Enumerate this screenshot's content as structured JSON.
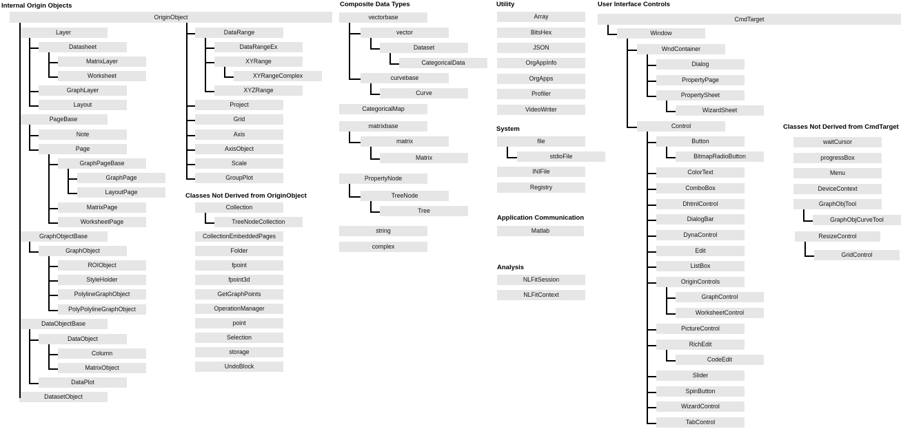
{
  "sections": [
    {
      "id": "internal-origin-objects",
      "title": "Internal Origin Objects",
      "items": [
        {
          "label": "OriginObject",
          "depth": 0
        },
        {
          "label": "Layer",
          "depth": 1
        },
        {
          "label": "Datasheet",
          "depth": 2
        },
        {
          "label": "MatrixLayer",
          "depth": 3
        },
        {
          "label": "Worksheet",
          "depth": 3
        },
        {
          "label": "GraphLayer",
          "depth": 2
        },
        {
          "label": "Layout",
          "depth": 2
        },
        {
          "label": "PageBase",
          "depth": 1
        },
        {
          "label": "Note",
          "depth": 2
        },
        {
          "label": "Page",
          "depth": 2
        },
        {
          "label": "GraphPageBase",
          "depth": 3
        },
        {
          "label": "GraphPage",
          "depth": 4
        },
        {
          "label": "LayoutPage",
          "depth": 4
        },
        {
          "label": "MatrixPage",
          "depth": 3
        },
        {
          "label": "WorksheetPage",
          "depth": 3
        },
        {
          "label": "GraphObjectBase",
          "depth": 1
        },
        {
          "label": "GraphObject",
          "depth": 2
        },
        {
          "label": "ROIObject",
          "depth": 3
        },
        {
          "label": "StyleHolder",
          "depth": 3
        },
        {
          "label": "PolylineGraphObject",
          "depth": 3
        },
        {
          "label": "PolyPolylineGraphObject",
          "depth": 3
        },
        {
          "label": "DataObjectBase",
          "depth": 1
        },
        {
          "label": "DataObject",
          "depth": 2
        },
        {
          "label": "Column",
          "depth": 3
        },
        {
          "label": "MatrixObject",
          "depth": 3
        },
        {
          "label": "DataPlot",
          "depth": 2
        },
        {
          "label": "DatasetObject",
          "depth": 1
        }
      ]
    },
    {
      "id": "origin-object-children",
      "title": "",
      "items": [
        {
          "label": "DataRange",
          "depth": 1
        },
        {
          "label": "DataRangeEx",
          "depth": 2
        },
        {
          "label": "XYRange",
          "depth": 2
        },
        {
          "label": "XYRangeComplex",
          "depth": 3
        },
        {
          "label": "XYZRange",
          "depth": 2
        },
        {
          "label": "Project",
          "depth": 1
        },
        {
          "label": "Grid",
          "depth": 1
        },
        {
          "label": "Axis",
          "depth": 1
        },
        {
          "label": "AxisObject",
          "depth": 1
        },
        {
          "label": "Scale",
          "depth": 1
        },
        {
          "label": "GroupPlot",
          "depth": 1
        }
      ]
    },
    {
      "id": "not-derived-origin-object",
      "title": "Classes Not Derived from OriginObject",
      "items": [
        {
          "label": "Collection",
          "depth": 0
        },
        {
          "label": "TreeNodeCollection",
          "depth": 1
        },
        {
          "label": "CollectionEmbeddedPages",
          "depth": 0
        },
        {
          "label": "Folder",
          "depth": 0
        },
        {
          "label": "fpoint",
          "depth": 0
        },
        {
          "label": "fpoint3d",
          "depth": 0
        },
        {
          "label": "GetGraphPoints",
          "depth": 0
        },
        {
          "label": "OperationManager",
          "depth": 0
        },
        {
          "label": "point",
          "depth": 0
        },
        {
          "label": "Selection",
          "depth": 0
        },
        {
          "label": "storage",
          "depth": 0
        },
        {
          "label": "UndoBlock",
          "depth": 0
        }
      ]
    },
    {
      "id": "composite-data-types",
      "title": "Composite Data Types",
      "items": [
        {
          "label": "vectorbase",
          "depth": 0
        },
        {
          "label": "vector",
          "depth": 1
        },
        {
          "label": "Dataset",
          "depth": 2
        },
        {
          "label": "CategoricalData",
          "depth": 3
        },
        {
          "label": "curvebase",
          "depth": 1
        },
        {
          "label": "Curve",
          "depth": 2
        },
        {
          "label": "CategoricalMap",
          "depth": 0
        },
        {
          "label": "matrixbase",
          "depth": 0
        },
        {
          "label": "matrix",
          "depth": 1
        },
        {
          "label": "Matrix",
          "depth": 2
        },
        {
          "label": "PropertyNode",
          "depth": 0
        },
        {
          "label": "TreeNode",
          "depth": 1
        },
        {
          "label": "Tree",
          "depth": 2
        },
        {
          "label": "string",
          "depth": 0
        },
        {
          "label": "complex",
          "depth": 0
        }
      ]
    },
    {
      "id": "utility",
      "title": "Utility",
      "items": [
        {
          "label": "Array",
          "depth": 0
        },
        {
          "label": "BitsHex",
          "depth": 0
        },
        {
          "label": "JSON",
          "depth": 0
        },
        {
          "label": "OrgAppInfo",
          "depth": 0
        },
        {
          "label": "OrgApps",
          "depth": 0
        },
        {
          "label": "Profiler",
          "depth": 0
        },
        {
          "label": "VideoWriter",
          "depth": 0
        }
      ]
    },
    {
      "id": "system",
      "title": "System",
      "items": [
        {
          "label": "file",
          "depth": 0
        },
        {
          "label": "stdioFile",
          "depth": 1
        },
        {
          "label": "INIFile",
          "depth": 0
        },
        {
          "label": "Registry",
          "depth": 0
        }
      ]
    },
    {
      "id": "application-communication",
      "title": "Application Communication",
      "items": [
        {
          "label": "Matlab",
          "depth": 0
        }
      ]
    },
    {
      "id": "analysis",
      "title": "Analysis",
      "items": [
        {
          "label": "NLFitSession",
          "depth": 0
        },
        {
          "label": "NLFitContext",
          "depth": 0
        }
      ]
    },
    {
      "id": "user-interface-controls",
      "title": "User Interface Controls",
      "items": [
        {
          "label": "CmdTarget",
          "depth": 0
        },
        {
          "label": "Window",
          "depth": 1
        },
        {
          "label": "WndContainer",
          "depth": 2
        },
        {
          "label": "Dialog",
          "depth": 3
        },
        {
          "label": "PropertyPage",
          "depth": 3
        },
        {
          "label": "PropertySheet",
          "depth": 3
        },
        {
          "label": "WizardSheet",
          "depth": 4
        },
        {
          "label": "Control",
          "depth": 2
        },
        {
          "label": "Button",
          "depth": 3
        },
        {
          "label": "BitmapRadioButton",
          "depth": 4
        },
        {
          "label": "ColorText",
          "depth": 3
        },
        {
          "label": "ComboBox",
          "depth": 3
        },
        {
          "label": "DhtmlControl",
          "depth": 3
        },
        {
          "label": "DialogBar",
          "depth": 3
        },
        {
          "label": "DynaControl",
          "depth": 3
        },
        {
          "label": "Edit",
          "depth": 3
        },
        {
          "label": "ListBox",
          "depth": 3
        },
        {
          "label": "OriginControls",
          "depth": 3
        },
        {
          "label": "GraphControl",
          "depth": 4
        },
        {
          "label": "WorksheetControl",
          "depth": 4
        },
        {
          "label": "PictureControl",
          "depth": 3
        },
        {
          "label": "RichEdit",
          "depth": 3
        },
        {
          "label": "CodeEdit",
          "depth": 4
        },
        {
          "label": "Slider",
          "depth": 3
        },
        {
          "label": "SpinButton",
          "depth": 3
        },
        {
          "label": "WizardControl",
          "depth": 3
        },
        {
          "label": "TabControl",
          "depth": 3
        }
      ]
    },
    {
      "id": "not-derived-cmdtarget",
      "title": "Classes Not Derived from CmdTarget",
      "items": [
        {
          "label": "waitCursor",
          "depth": 0
        },
        {
          "label": "progressBox",
          "depth": 0
        },
        {
          "label": "Menu",
          "depth": 0
        },
        {
          "label": "DeviceContext",
          "depth": 0
        },
        {
          "label": "GraphObjTool",
          "depth": 0
        },
        {
          "label": "GraphObjCurveTool",
          "depth": 1
        },
        {
          "label": "ResizeControl",
          "depth": 0
        },
        {
          "label": "GridControl",
          "depth": 1
        }
      ]
    }
  ],
  "colors": {
    "node_fill": "#e6e6e6",
    "line": "#000000",
    "background": "#ffffff"
  }
}
